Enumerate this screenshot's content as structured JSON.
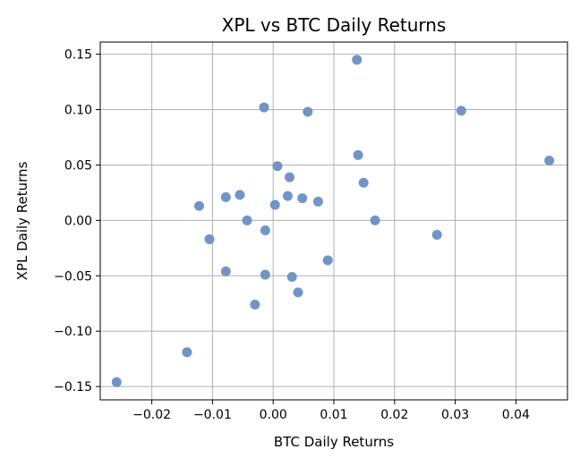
{
  "chart_data": {
    "type": "scatter",
    "title": "XPL vs BTC Daily Returns",
    "xlabel": "BTC Daily Returns",
    "ylabel": "XPL Daily Returns",
    "xlim": [
      -0.0285,
      0.0485
    ],
    "ylim": [
      -0.162,
      0.161
    ],
    "xticks": [
      -0.02,
      -0.01,
      0.0,
      0.01,
      0.02,
      0.03,
      0.04
    ],
    "xtick_labels": [
      "−0.02",
      "−0.01",
      "0.00",
      "0.01",
      "0.02",
      "0.03",
      "0.04"
    ],
    "yticks": [
      -0.15,
      -0.1,
      -0.05,
      0.0,
      0.05,
      0.1,
      0.15
    ],
    "ytick_labels": [
      "−0.15",
      "−0.10",
      "−0.05",
      "0.00",
      "0.05",
      "0.10",
      "0.15"
    ],
    "grid": true,
    "point_color": "#7095c6",
    "points": [
      {
        "x": -0.0258,
        "y": -0.146
      },
      {
        "x": -0.0142,
        "y": -0.119
      },
      {
        "x": -0.0122,
        "y": 0.013
      },
      {
        "x": -0.0105,
        "y": -0.017
      },
      {
        "x": -0.0078,
        "y": 0.021
      },
      {
        "x": -0.0078,
        "y": -0.046
      },
      {
        "x": -0.0055,
        "y": 0.023
      },
      {
        "x": -0.0043,
        "y": 0.0
      },
      {
        "x": -0.003,
        "y": -0.076
      },
      {
        "x": -0.0015,
        "y": 0.102
      },
      {
        "x": -0.0013,
        "y": -0.009
      },
      {
        "x": -0.0013,
        "y": -0.049
      },
      {
        "x": 0.0003,
        "y": 0.014
      },
      {
        "x": 0.0007,
        "y": 0.049
      },
      {
        "x": 0.0024,
        "y": 0.022
      },
      {
        "x": 0.0027,
        "y": 0.039
      },
      {
        "x": 0.0031,
        "y": -0.051
      },
      {
        "x": 0.0041,
        "y": -0.065
      },
      {
        "x": 0.0048,
        "y": 0.02
      },
      {
        "x": 0.0057,
        "y": 0.098
      },
      {
        "x": 0.0074,
        "y": 0.017
      },
      {
        "x": 0.009,
        "y": -0.036
      },
      {
        "x": 0.0138,
        "y": 0.145
      },
      {
        "x": 0.014,
        "y": 0.059
      },
      {
        "x": 0.0149,
        "y": 0.034
      },
      {
        "x": 0.0168,
        "y": 0.0
      },
      {
        "x": 0.027,
        "y": -0.013
      },
      {
        "x": 0.031,
        "y": 0.099
      },
      {
        "x": 0.0455,
        "y": 0.054
      }
    ]
  }
}
